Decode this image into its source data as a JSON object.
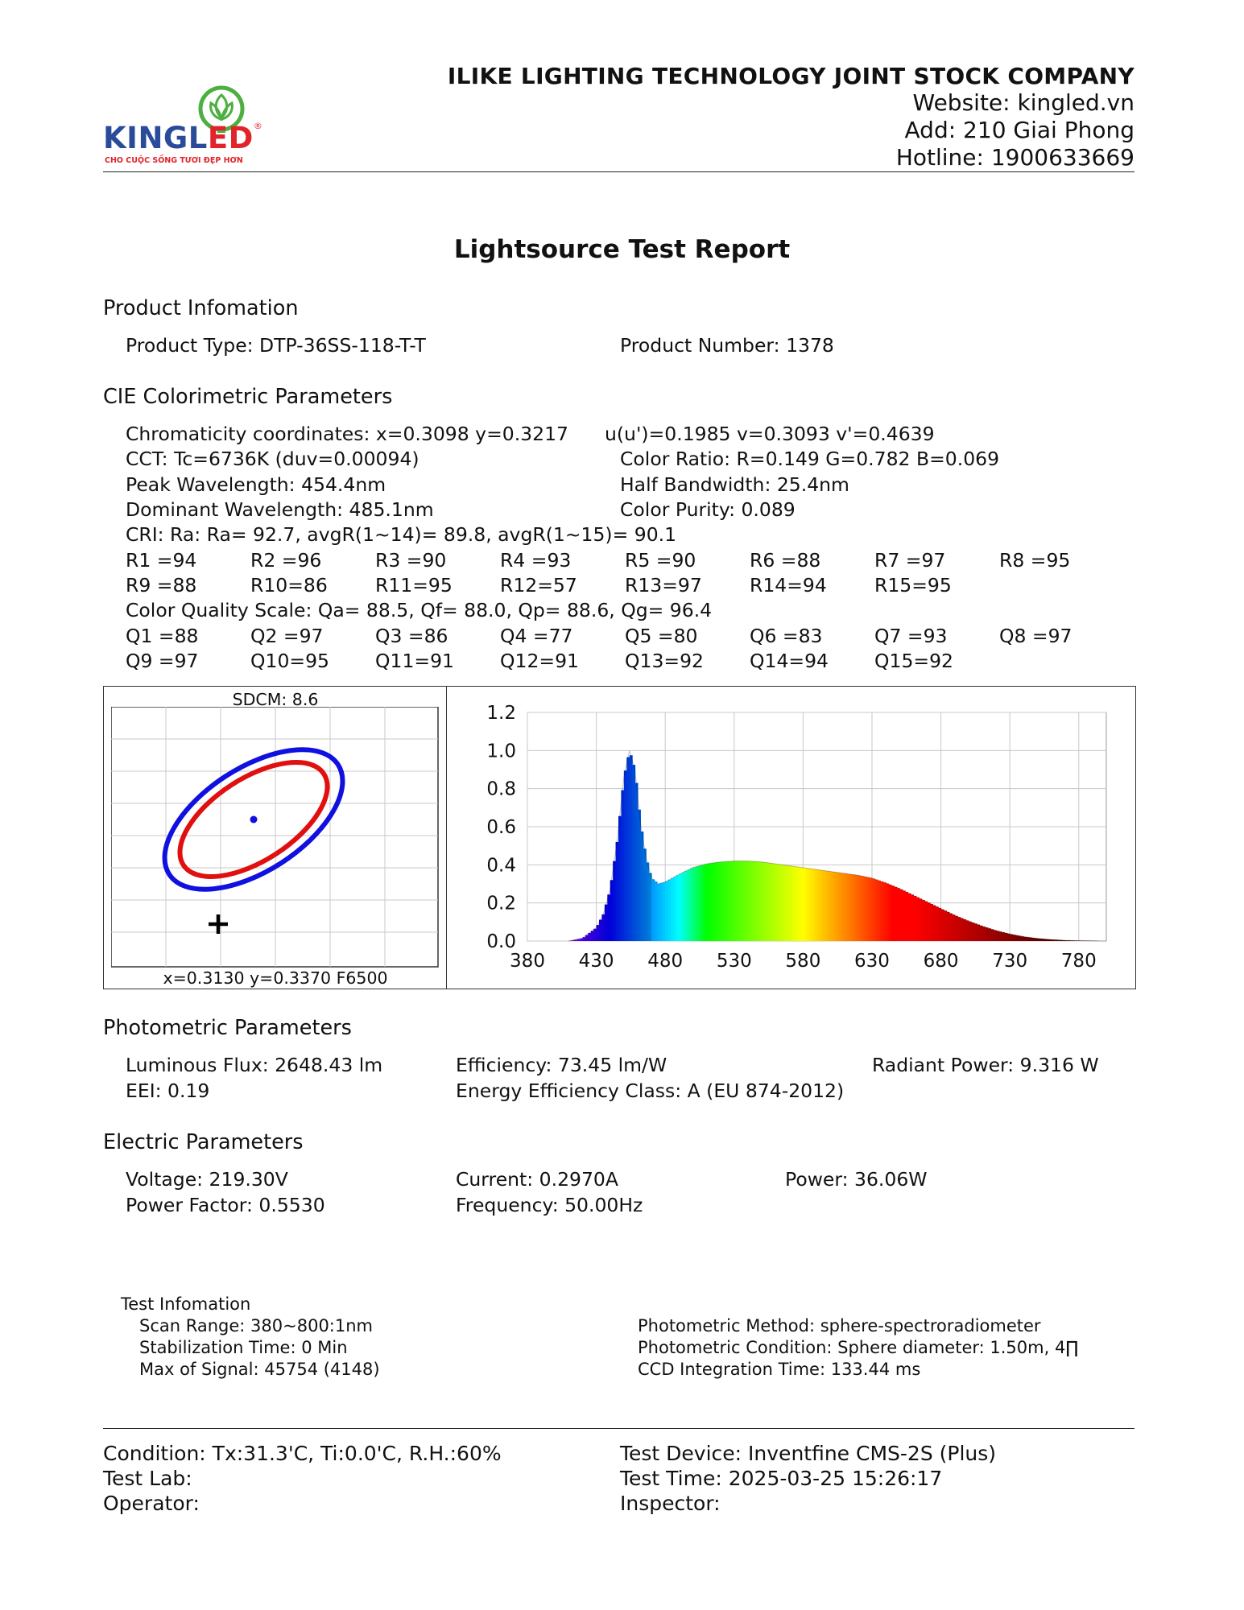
{
  "header": {
    "company": "ILIKE LIGHTING TECHNOLOGY JOINT STOCK COMPANY",
    "website": "Website: kingled.vn",
    "address": "Add: 210 Giai Phong",
    "hotline": "Hotline: 1900633669",
    "logo": {
      "brand_a": "KINGL",
      "brand_b": "ED",
      "registered": "®",
      "tagline": "CHO CUỘC SỐNG TƯƠI ĐẸP HƠN",
      "icon": "lotus-bulb-icon",
      "colors": {
        "blue": "#2a4a9a",
        "red": "#e0242a",
        "green": "#4caf3f"
      }
    }
  },
  "title": "Lightsource Test Report",
  "product": {
    "heading": "Product Infomation",
    "type": "Product Type: DTP-36SS-118-T-T",
    "number": "Product Number: 1378"
  },
  "cie": {
    "heading": "CIE Colorimetric Parameters",
    "chromaticity": "Chromaticity coordinates: x=0.3098 y=0.3217",
    "uv": "u(u')=0.1985 v=0.3093 v'=0.4639",
    "cct": "CCT: Tc=6736K (duv=0.00094)",
    "color_ratio": "Color Ratio: R=0.149  G=0.782  B=0.069",
    "peak": "Peak Wavelength: 454.4nm",
    "half_bw": "Half Bandwidth: 25.4nm",
    "dominant": "Dominant Wavelength: 485.1nm",
    "purity": "Color Purity: 0.089",
    "cri": "CRI: Ra: Ra= 92.7, avgR(1~14)= 89.8, avgR(1~15)= 90.1",
    "r_row1": [
      "R1 =94",
      "R2 =96",
      "R3 =90",
      "R4 =93",
      "R5 =90",
      "R6 =88",
      "R7 =97",
      "R8 =95"
    ],
    "r_row2": [
      "R9 =88",
      "R10=86",
      "R11=95",
      "R12=57",
      "R13=97",
      "R14=94",
      "R15=95"
    ],
    "cqs": "Color Quality Scale: Qa= 88.5, Qf= 88.0, Qp= 88.6, Qg= 96.4",
    "q_row1": [
      "Q1 =88",
      "Q2 =97",
      "Q3 =86",
      "Q4 =77",
      "Q5 =80",
      "Q6 =83",
      "Q7 =93",
      "Q8 =97"
    ],
    "q_row2": [
      "Q9 =97",
      "Q10=95",
      "Q11=91",
      "Q12=91",
      "Q13=92",
      "Q14=94",
      "Q15=92"
    ]
  },
  "sdcm": {
    "label": "SDCM:   8.6",
    "reference": "x=0.3130 y=0.3370 F6500",
    "colors": {
      "outer": "#1010e0",
      "inner": "#e01010",
      "point": "#1010e0",
      "marker": "#000000"
    }
  },
  "chart_data": {
    "type": "area",
    "xlabel": "",
    "ylabel": "",
    "x_ticks": [
      "380",
      "430",
      "480",
      "530",
      "580",
      "630",
      "680",
      "730",
      "780"
    ],
    "y_ticks": [
      "0.0",
      "0.2",
      "0.4",
      "0.6",
      "0.8",
      "1.0",
      "1.2"
    ],
    "xlim": [
      380,
      800
    ],
    "ylim": [
      0,
      1.2
    ],
    "grid": true,
    "series": [
      {
        "x": [
          410,
          420,
          430,
          435,
          440,
          445,
          450,
          454,
          458,
          462,
          466,
          470,
          475,
          480,
          490,
          500,
          510,
          520,
          530,
          540,
          550,
          560,
          570,
          580,
          590,
          600,
          610,
          620,
          630,
          640,
          650,
          660,
          670,
          680,
          690,
          700,
          710,
          720,
          730,
          740,
          750,
          760,
          770,
          780,
          790,
          800
        ],
        "values": [
          0.0,
          0.015,
          0.07,
          0.14,
          0.27,
          0.52,
          0.86,
          1.0,
          0.9,
          0.62,
          0.44,
          0.33,
          0.3,
          0.31,
          0.35,
          0.385,
          0.405,
          0.415,
          0.42,
          0.42,
          0.415,
          0.405,
          0.395,
          0.385,
          0.375,
          0.365,
          0.355,
          0.345,
          0.33,
          0.305,
          0.275,
          0.24,
          0.205,
          0.17,
          0.135,
          0.105,
          0.078,
          0.055,
          0.037,
          0.023,
          0.014,
          0.008,
          0.004,
          0.002,
          0.001,
          0.0
        ]
      }
    ]
  },
  "photometric": {
    "heading": "Photometric Parameters",
    "flux": "Luminous Flux: 2648.43 lm",
    "efficiency": "Efficiency: 73.45 lm/W",
    "radiant": "Radiant Power: 9.316 W",
    "eei": "EEI:  0.19",
    "class": "Energy Efficiency Class: A (EU 874-2012)"
  },
  "electric": {
    "heading": "Electric Parameters",
    "voltage": "Voltage: 219.30V",
    "current": "Current: 0.2970A",
    "power": "Power: 36.06W",
    "pf": "Power Factor: 0.5530",
    "frequency": "Frequency: 50.00Hz"
  },
  "test_info": {
    "heading": "Test Infomation",
    "scan": "Scan Range: 380~800:1nm",
    "stab": "Stabilization Time: 0 Min",
    "signal": "Max of Signal: 45754 (4148)",
    "method": "Photometric Method: sphere-spectroradiometer",
    "condition": "Photometric Condition: Sphere diameter: 1.50m, 4∏",
    "ccd": "CCD Integration Time: 133.44 ms"
  },
  "footer": {
    "condition": "Condition: Tx:31.3'C, Ti:0.0'C, R.H.:60%",
    "device": "Test Device: Inventfine CMS-2S (Plus)",
    "lab": "Test Lab:",
    "time": "Test Time: 2025-03-25 15:26:17",
    "operator": "Operator:",
    "inspector": "Inspector:"
  }
}
